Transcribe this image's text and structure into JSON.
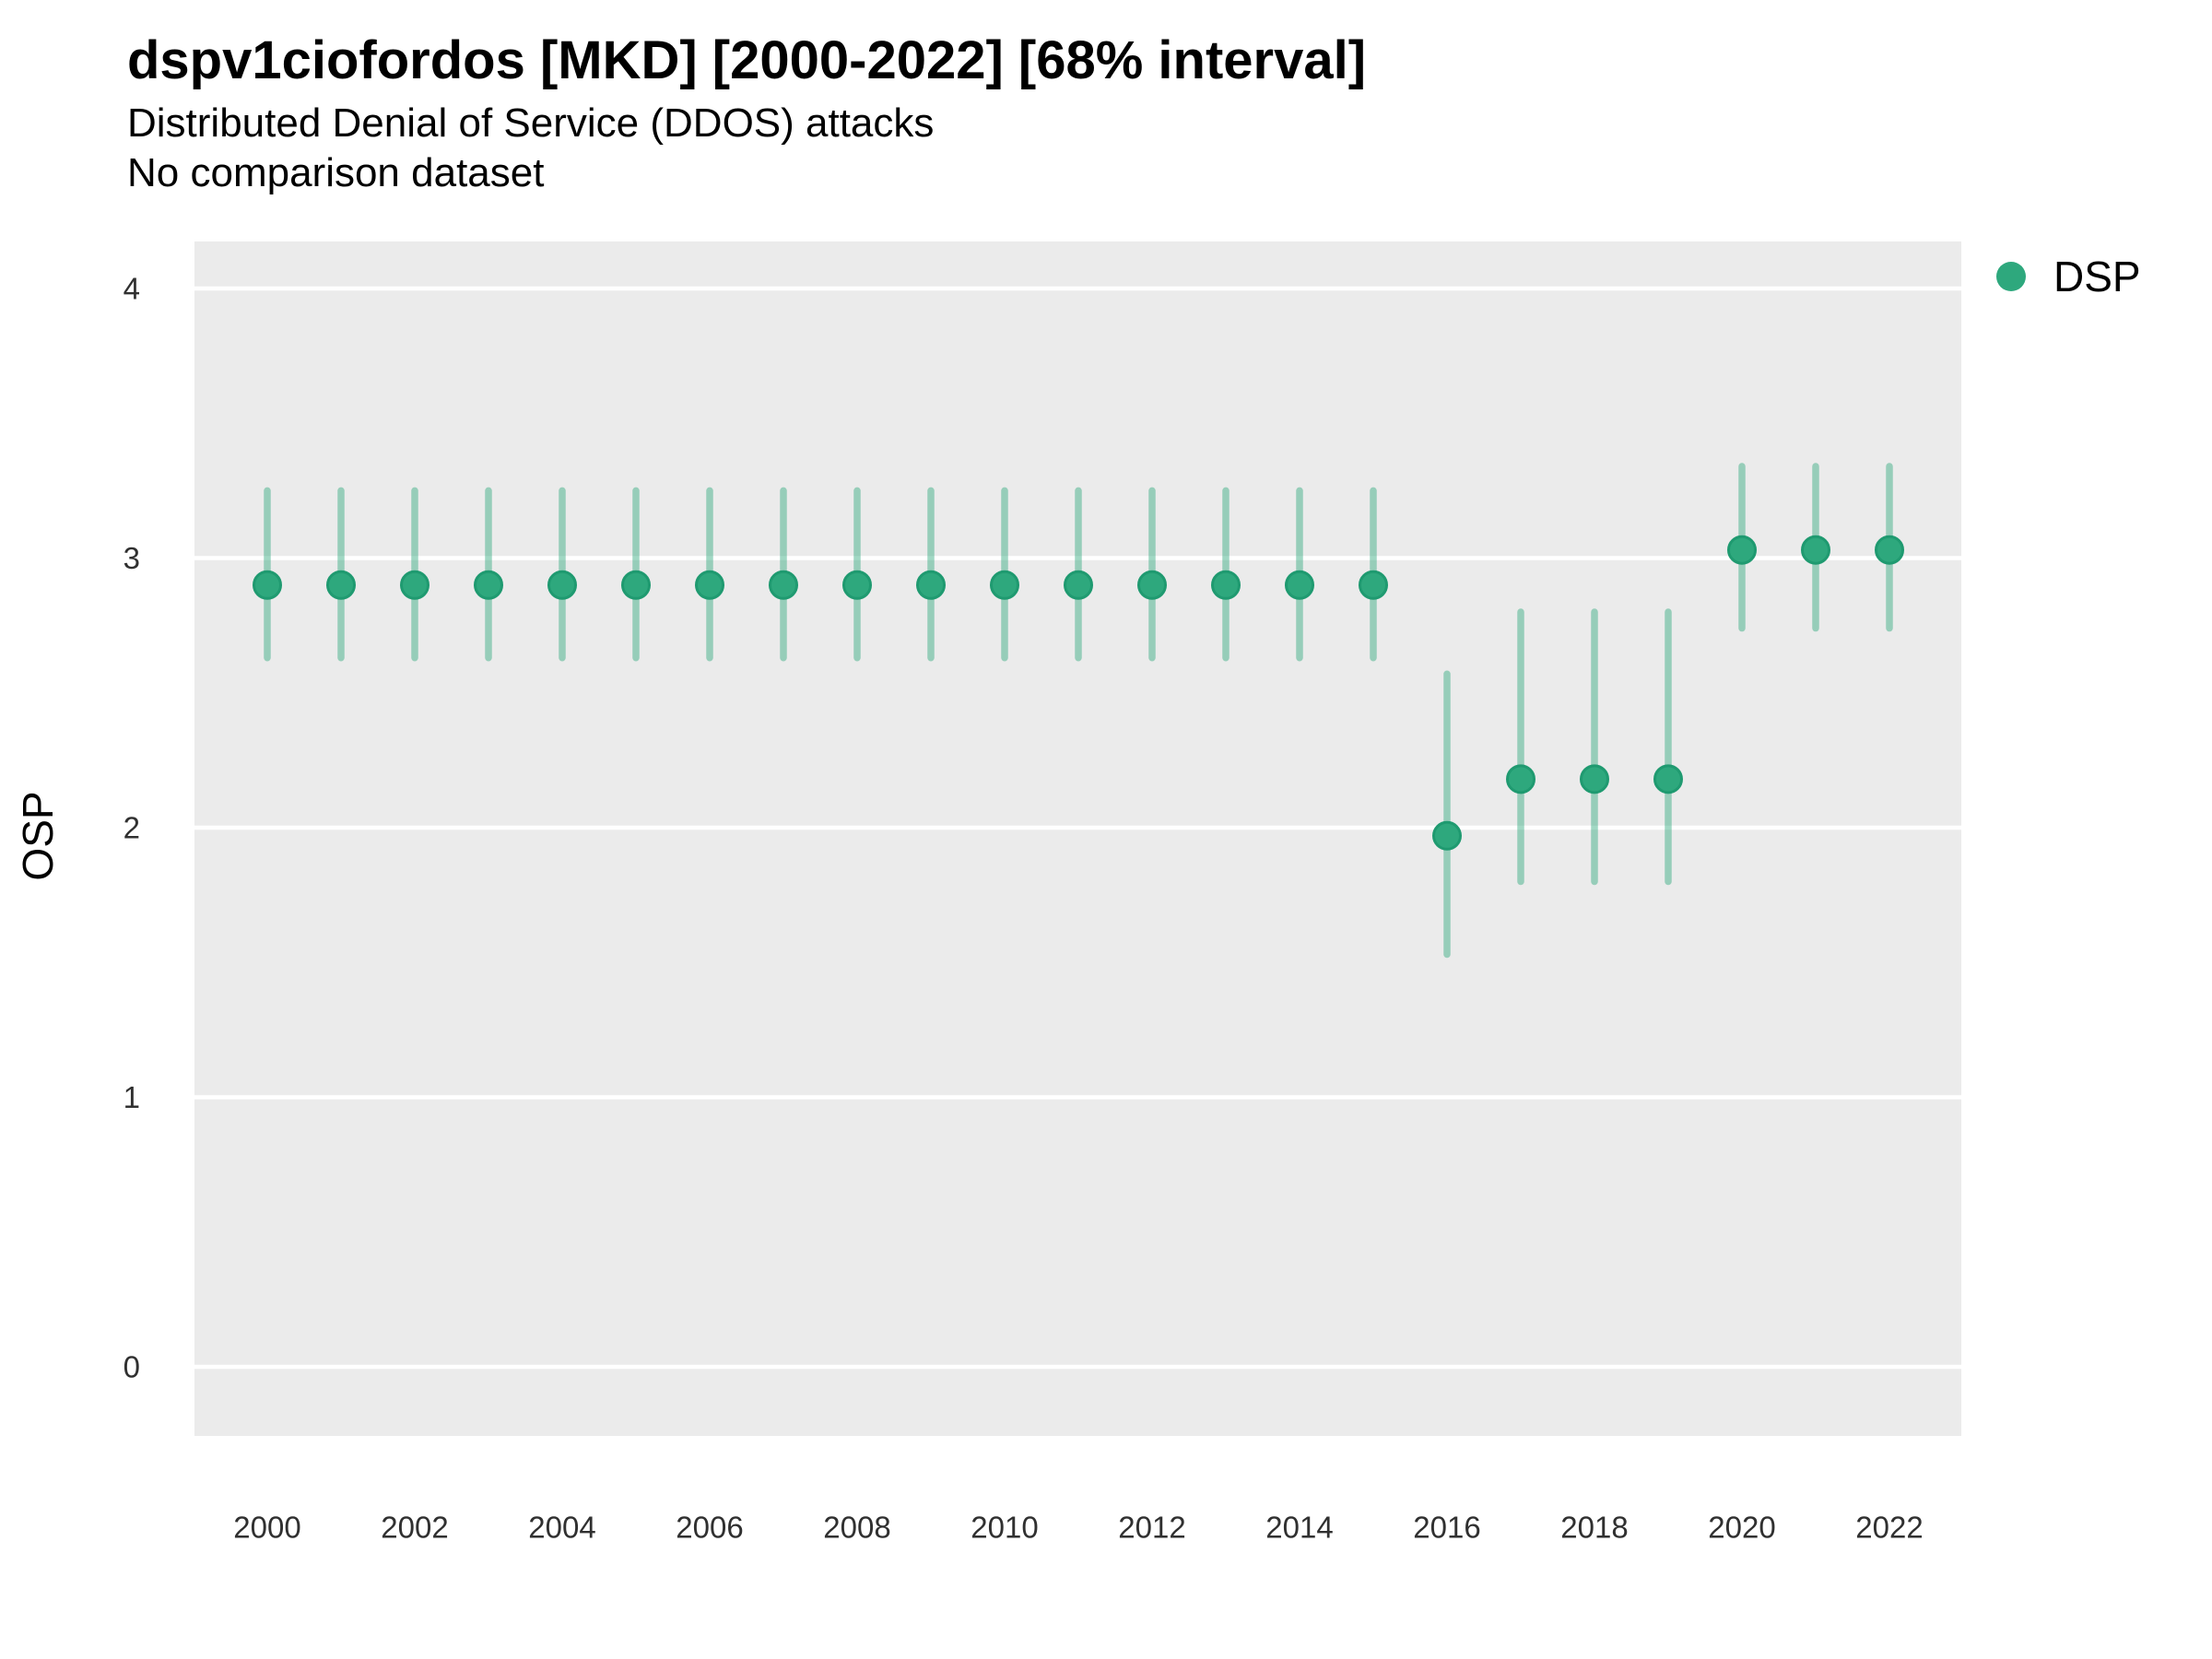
{
  "figure": {
    "title": "dspv1ciofordos [MKD] [2000-2022] [68% interval]",
    "subtitle": "Distributed Denial of Service (DDOS) attacks",
    "note": "No comparison dataset"
  },
  "chart_data": {
    "type": "scatter",
    "title": "dspv1ciofordos [MKD] [2000-2022] [68% interval]",
    "subtitle": "Distributed Denial of Service (DDOS) attacks",
    "note": "No comparison dataset",
    "xlabel": "",
    "ylabel": "OSP",
    "interval_level": "68%",
    "legend_position": "right",
    "grid": true,
    "panel_color": "#EBEBEB",
    "gridline_color": "#FFFFFF",
    "x": [
      2000,
      2001,
      2002,
      2003,
      2004,
      2005,
      2006,
      2007,
      2008,
      2009,
      2010,
      2011,
      2012,
      2013,
      2014,
      2015,
      2016,
      2017,
      2018,
      2019,
      2020,
      2021,
      2022
    ],
    "x_tick_labels": [
      "2000",
      "2002",
      "2004",
      "2006",
      "2008",
      "2010",
      "2012",
      "2014",
      "2016",
      "2018",
      "2020",
      "2022"
    ],
    "y_ticks": [
      0,
      1,
      2,
      3,
      4
    ],
    "xlim": [
      1999,
      2023
    ],
    "ylim": [
      -0.26,
      4.17
    ],
    "series": [
      {
        "name": "DSP",
        "color": "#2EA87D",
        "stroke_color": "#1F9A70",
        "interval_opacity": 0.45,
        "values": [
          2.9,
          2.9,
          2.9,
          2.9,
          2.9,
          2.9,
          2.9,
          2.9,
          2.9,
          2.9,
          2.9,
          2.9,
          2.9,
          2.9,
          2.9,
          2.9,
          1.97,
          2.18,
          2.18,
          2.18,
          3.03,
          3.03,
          3.03
        ],
        "lower": [
          2.63,
          2.63,
          2.63,
          2.63,
          2.63,
          2.63,
          2.63,
          2.63,
          2.63,
          2.63,
          2.63,
          2.63,
          2.63,
          2.63,
          2.63,
          2.63,
          1.53,
          1.8,
          1.8,
          1.8,
          2.74,
          2.74,
          2.74
        ],
        "upper": [
          3.25,
          3.25,
          3.25,
          3.25,
          3.25,
          3.25,
          3.25,
          3.25,
          3.25,
          3.25,
          3.25,
          3.25,
          3.25,
          3.25,
          3.25,
          3.25,
          2.57,
          2.8,
          2.8,
          2.8,
          3.34,
          3.34,
          3.34
        ]
      }
    ]
  }
}
